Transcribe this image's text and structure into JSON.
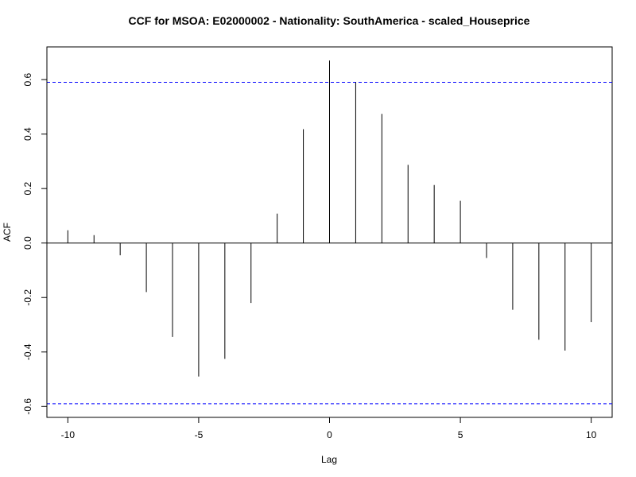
{
  "chart_data": {
    "type": "bar",
    "title": "CCF for MSOA: E02000002 - Nationality: SouthAmerica - scaled_Houseprice",
    "xlabel": "Lag",
    "ylabel": "ACF",
    "xlim": [
      -10.8,
      10.8
    ],
    "ylim": [
      -0.64,
      0.72
    ],
    "x_ticks": [
      -10,
      -5,
      0,
      5,
      10
    ],
    "x_tick_labels": [
      "-10",
      "-5",
      "0",
      "5",
      "10"
    ],
    "y_ticks": [
      -0.6,
      -0.4,
      -0.2,
      0.0,
      0.2,
      0.4,
      0.6
    ],
    "y_tick_labels": [
      "-0.6",
      "-0.4",
      "-0.2",
      "0.0",
      "0.2",
      "0.4",
      "0.6"
    ],
    "lags": [
      -10,
      -9,
      -8,
      -7,
      -6,
      -5,
      -4,
      -3,
      -2,
      -1,
      0,
      1,
      2,
      3,
      4,
      5,
      6,
      7,
      8,
      9,
      10
    ],
    "values": [
      0.047,
      0.029,
      -0.045,
      -0.18,
      -0.345,
      -0.49,
      -0.425,
      -0.22,
      0.108,
      0.418,
      0.67,
      0.59,
      0.474,
      0.287,
      0.213,
      0.155,
      -0.055,
      -0.245,
      -0.355,
      -0.395,
      -0.29
    ],
    "confidence_band": 0.59,
    "zero_line": true,
    "grid": false,
    "colors": {
      "bars": "#000000",
      "band": "#0000ff",
      "axis": "#000000"
    }
  }
}
